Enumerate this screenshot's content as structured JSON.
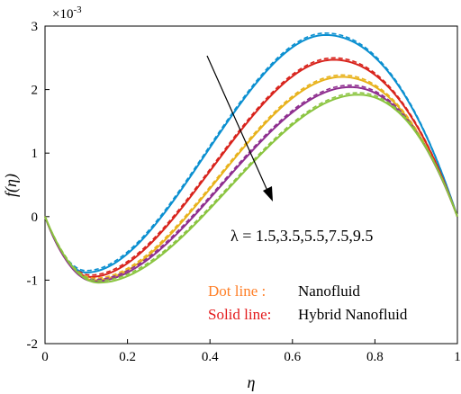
{
  "chart_data": {
    "type": "line",
    "xlabel": "η",
    "ylabel": "f(η)",
    "y_multiplier": "×10",
    "y_multiplier_exp": "-3",
    "xlim": [
      0,
      1
    ],
    "ylim": [
      -2,
      3
    ],
    "xticks": [
      "0",
      "0.2",
      "0.4",
      "0.6",
      "0.8",
      "1"
    ],
    "yticks": [
      "-2",
      "-1",
      "0",
      "1",
      "2",
      "3"
    ],
    "grid": false,
    "annotation": "λ = 1.5,3.5,5.5,7.5,9.5",
    "legend": {
      "placement": "bottom-right",
      "entries": [
        {
          "label": "Dot line  :",
          "description": "Nanofluid",
          "color": "#ff7f27"
        },
        {
          "label": "Solid line:",
          "description": "Hybrid Nanofluid",
          "color": "#e31a1c"
        }
      ]
    },
    "series": [
      {
        "lambda": 1.5,
        "color": "#0a8fd0",
        "solid": {
          "min": [
            0.1,
            -0.88
          ],
          "max": [
            0.68,
            2.86
          ]
        },
        "dashed": {
          "min": [
            0.1,
            -0.85
          ],
          "max": [
            0.68,
            2.89
          ]
        }
      },
      {
        "lambda": 3.5,
        "color": "#d8231c",
        "solid": {
          "min": [
            0.11,
            -0.95
          ],
          "max": [
            0.7,
            2.47
          ]
        },
        "dashed": {
          "min": [
            0.11,
            -0.92
          ],
          "max": [
            0.7,
            2.5
          ]
        }
      },
      {
        "lambda": 5.5,
        "color": "#e8b21b",
        "solid": {
          "min": [
            0.12,
            -1.0
          ],
          "max": [
            0.72,
            2.2
          ]
        },
        "dashed": {
          "min": [
            0.12,
            -0.97
          ],
          "max": [
            0.72,
            2.23
          ]
        }
      },
      {
        "lambda": 7.5,
        "color": "#8e2e8f",
        "solid": {
          "min": [
            0.12,
            -1.02
          ],
          "max": [
            0.74,
            2.04
          ]
        },
        "dashed": {
          "min": [
            0.12,
            -0.99
          ],
          "max": [
            0.74,
            2.07
          ]
        }
      },
      {
        "lambda": 9.5,
        "color": "#8ac43f",
        "solid": {
          "min": [
            0.13,
            -1.04
          ],
          "max": [
            0.76,
            1.92
          ]
        },
        "dashed": {
          "min": [
            0.13,
            -1.01
          ],
          "max": [
            0.76,
            1.95
          ]
        }
      }
    ]
  }
}
